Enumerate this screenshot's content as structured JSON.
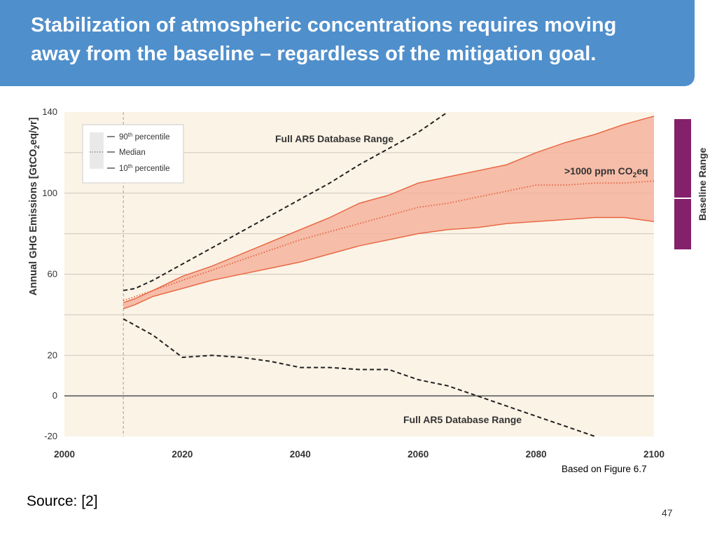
{
  "slide": {
    "title": "Stabilization of atmospheric concentrations requires moving away from the baseline – regardless of the mitigation goal.",
    "source": "Source:  [2]",
    "caption": "Based on Figure 6.7",
    "page_number": "47"
  },
  "colors": {
    "header": "#4f8fcc",
    "plot_bg": "#fbf3e6",
    "band_fill": "#f4b39d",
    "band_line": "#e8623c",
    "baseline_bar": "#85206a"
  },
  "chart_data": {
    "type": "area",
    "title": "",
    "xlabel": "",
    "ylabel_prefix": "Annual GHG Emissions [GtCO",
    "ylabel_sub": "2",
    "ylabel_suffix": "eq/yr]",
    "xlim": [
      2000,
      2100
    ],
    "ylim": [
      -20,
      140
    ],
    "x_ticks": [
      "2000",
      "2020",
      "2040",
      "2060",
      "2080",
      "2100"
    ],
    "y_ticks": [
      "140",
      "100",
      "60",
      "20",
      "0",
      "-20"
    ],
    "y_tick_values": [
      140,
      100,
      60,
      20,
      0,
      -20
    ],
    "gridlines_y": [
      120,
      100,
      80,
      60,
      40,
      20
    ],
    "start_year_marker": 2010,
    "x": [
      2010,
      2012,
      2015,
      2020,
      2025,
      2030,
      2035,
      2040,
      2045,
      2050,
      2055,
      2060,
      2065,
      2070,
      2075,
      2080,
      2085,
      2090,
      2095,
      2100
    ],
    "series": [
      {
        "name": "90th percentile",
        "values": [
          46,
          48,
          52,
          59,
          64,
          70,
          76,
          82,
          88,
          95,
          99,
          105,
          108,
          111,
          114,
          120,
          125,
          129,
          134,
          138
        ]
      },
      {
        "name": "Median",
        "values": [
          47,
          49,
          52,
          57,
          62,
          67,
          72,
          77,
          81,
          85,
          89,
          93,
          95,
          98,
          101,
          104,
          104,
          105,
          105,
          106
        ]
      },
      {
        "name": "10th percentile",
        "values": [
          43,
          45,
          49,
          53,
          57,
          60,
          63,
          66,
          70,
          74,
          77,
          80,
          82,
          83,
          85,
          86,
          87,
          88,
          88,
          86
        ]
      }
    ],
    "full_range_upper": {
      "x": [
        2010,
        2012,
        2015,
        2020,
        2025,
        2030,
        2035,
        2040,
        2045,
        2050,
        2055,
        2060,
        2065
      ],
      "values": [
        52,
        53,
        57,
        65,
        73,
        81,
        89,
        97,
        105,
        114,
        122,
        130,
        140
      ]
    },
    "full_range_lower": {
      "x": [
        2010,
        2015,
        2020,
        2025,
        2030,
        2035,
        2040,
        2045,
        2050,
        2055,
        2060,
        2065,
        2070,
        2075,
        2080,
        2085,
        2090
      ],
      "values": [
        38,
        30,
        19,
        20,
        19,
        17,
        14,
        14,
        13,
        13,
        8,
        5,
        0,
        -5,
        -10,
        -15,
        -20
      ]
    },
    "legend": {
      "title": "",
      "items": [
        {
          "prefix": "90",
          "sup": "th",
          "suffix": " percentile"
        },
        {
          "prefix": "Median",
          "sup": "",
          "suffix": ""
        },
        {
          "prefix": "10",
          "sup": "th",
          "suffix": " percentile"
        }
      ]
    },
    "annotations": {
      "full_range_top": "Full AR5 Database Range",
      "full_range_bottom": "Full AR5 Database Range",
      "scenario_prefix": ">1000 ppm CO",
      "scenario_sub": "2",
      "scenario_suffix": "eq"
    },
    "side_bar_label": "Baseline Range"
  }
}
